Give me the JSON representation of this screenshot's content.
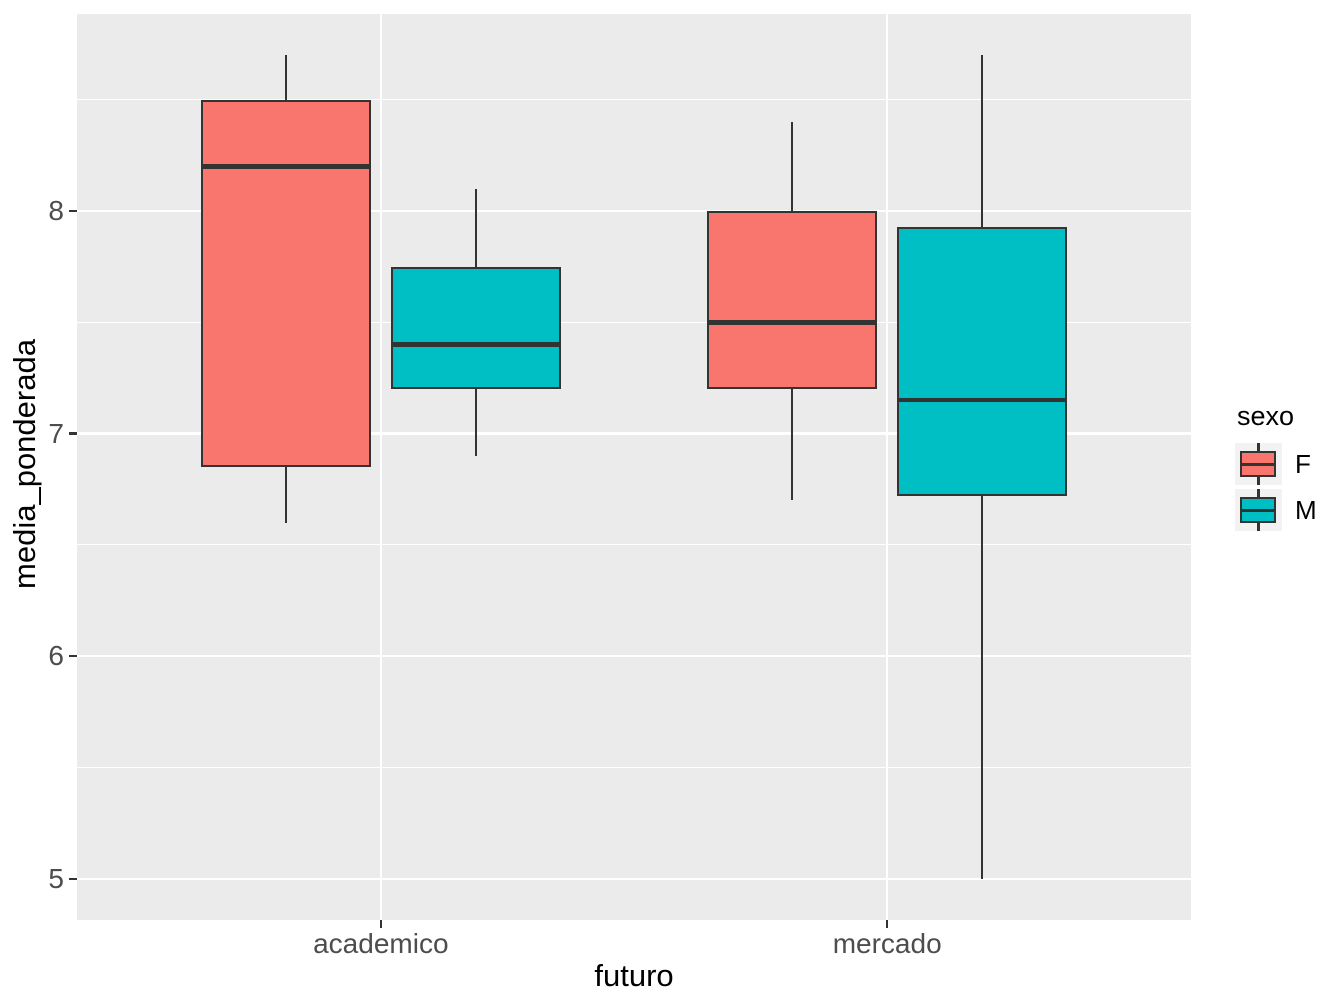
{
  "chart_data": {
    "type": "boxplot",
    "xlabel": "futuro",
    "ylabel": "media_ponderada",
    "categories": [
      "academico",
      "mercado"
    ],
    "y_ticks": [
      8,
      7,
      6,
      5
    ],
    "y_minor_ticks": [
      8.5,
      7.5,
      6.5,
      5.5
    ],
    "ylim": [
      4.815,
      8.885
    ],
    "grid": "on",
    "legend": {
      "title": "sexo",
      "position": "right",
      "entries": [
        {
          "label": "F",
          "color": "#F8766D"
        },
        {
          "label": "M",
          "color": "#00BFC4"
        }
      ]
    },
    "series": [
      {
        "category": "academico",
        "sexo": "F",
        "whisker_low": 6.6,
        "q1": 6.85,
        "median": 8.2,
        "q3": 8.5,
        "whisker_high": 8.7
      },
      {
        "category": "academico",
        "sexo": "M",
        "whisker_low": 6.9,
        "q1": 7.2,
        "median": 7.4,
        "q3": 7.75,
        "whisker_high": 8.1
      },
      {
        "category": "mercado",
        "sexo": "F",
        "whisker_low": 6.7,
        "q1": 7.2,
        "median": 7.5,
        "q3": 8.0,
        "whisker_high": 8.4
      },
      {
        "category": "mercado",
        "sexo": "M",
        "whisker_low": 5.0,
        "q1": 6.72,
        "median": 7.15,
        "q3": 7.93,
        "whisker_high": 8.7
      }
    ],
    "colors": {
      "fill_F": "#F8766D",
      "fill_M": "#00BFC4",
      "box_border": "#333333",
      "panel_bg": "#EBEBEB",
      "grid": "#FFFFFF",
      "axis_text": "#4D4D4D",
      "axis_title": "#000000",
      "legend_key_bg": "#F2F2F2"
    }
  }
}
